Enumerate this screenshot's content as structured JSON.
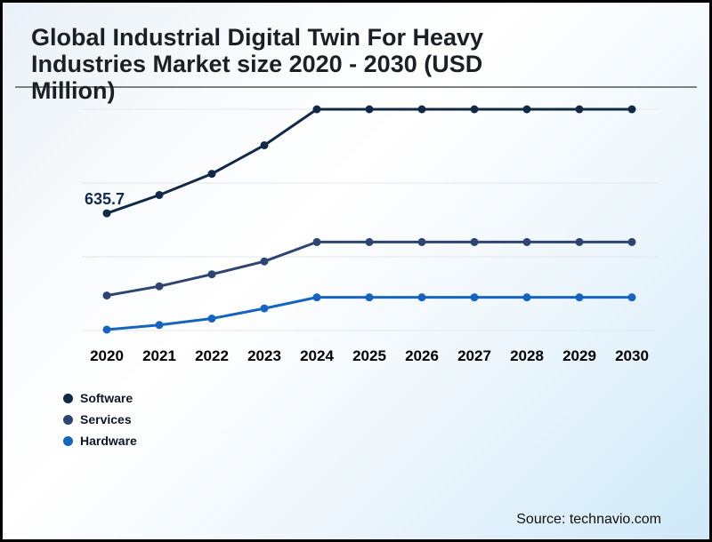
{
  "title": {
    "line1": "Global Industrial Digital Twin For Heavy",
    "line2": "Industries Market size 2020 - 2030 (USD",
    "line3": "Million)"
  },
  "source": {
    "text": "Source: technavio.com"
  },
  "chart_data": {
    "type": "line",
    "title": "Global Industrial Digital Twin For Heavy Industries Market size 2020 - 2030 (USD Million)",
    "categories": [
      "2020",
      "2021",
      "2022",
      "2023",
      "2024",
      "2025",
      "2026",
      "2027",
      "2028",
      "2029",
      "2030"
    ],
    "series": [
      {
        "name": "Software",
        "color": "#112947",
        "values": [
          635.7,
          735,
          850,
          1005,
          1200,
          1200,
          1200,
          1200,
          1200,
          1200,
          1200
        ]
      },
      {
        "name": "Services",
        "color": "#2e4574",
        "values": [
          190,
          240,
          305,
          375,
          480,
          480,
          480,
          480,
          480,
          480,
          480
        ]
      },
      {
        "name": "Hardware",
        "color": "#1565c0",
        "values": [
          5,
          30,
          65,
          120,
          180,
          180,
          180,
          180,
          180,
          180,
          180
        ]
      }
    ],
    "first_point_label": "635.7",
    "labeled_points": [
      {
        "series": "Software",
        "category": "2020",
        "value": 635.7
      }
    ],
    "ylim": [
      0,
      1200
    ],
    "gridline_values": [
      0,
      400,
      800,
      1200
    ],
    "grid": "horizontal",
    "xlabel": "",
    "ylabel": "",
    "legend_position": "bottom-left"
  },
  "colors": {
    "divider": "#7d7f82",
    "gridline": "#e2e7ec",
    "title_text": "#1c2026",
    "axis_text": "#000000",
    "data_label_text": "#13294f"
  }
}
